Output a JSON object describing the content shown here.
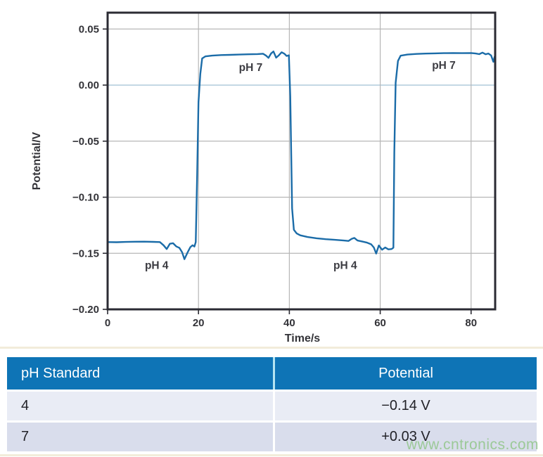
{
  "chart_data": {
    "type": "line",
    "title": "",
    "xlabel": "Time/s",
    "ylabel": "Potential/V",
    "xlim": [
      0,
      85.3
    ],
    "ylim": [
      -0.2,
      0.0646
    ],
    "grid": true,
    "legend": "none",
    "x_ticks": [
      {
        "label": "0",
        "value": 0
      },
      {
        "label": "20",
        "value": 20
      },
      {
        "label": "40",
        "value": 40
      },
      {
        "label": "60",
        "value": 60
      },
      {
        "label": "80",
        "value": 80
      }
    ],
    "y_ticks": [
      {
        "label": "0.05",
        "value": 0.05
      },
      {
        "label": "0.00",
        "value": 0.0
      },
      {
        "label": "−0.05",
        "value": -0.05
      },
      {
        "label": "−0.10",
        "value": -0.1
      },
      {
        "label": "−0.15",
        "value": -0.15
      },
      {
        "label": "−0.20",
        "value": -0.2
      }
    ],
    "colors": {
      "line": "#1B6CA8",
      "grid": "#b6b6b6",
      "zero_grid": "#a9c6d8",
      "frame": "#2b2b33"
    },
    "annotations": [
      {
        "text": "pH 7",
        "t": 31.5,
        "v": 0.0125
      },
      {
        "text": "pH 4",
        "t": 10.8,
        "v": -0.164
      },
      {
        "text": "pH 4",
        "t": 52.3,
        "v": -0.164
      },
      {
        "text": "pH 7",
        "t": 74.0,
        "v": 0.0145
      }
    ],
    "series": [
      {
        "name": "electrode potential",
        "points": [
          [
            0,
            -0.14
          ],
          [
            2,
            -0.1401
          ],
          [
            4,
            -0.1399
          ],
          [
            6,
            -0.1397
          ],
          [
            8,
            -0.1396
          ],
          [
            10,
            -0.1398
          ],
          [
            11.5,
            -0.14
          ],
          [
            12.3,
            -0.1428
          ],
          [
            13.0,
            -0.1462
          ],
          [
            13.7,
            -0.1415
          ],
          [
            14.4,
            -0.141
          ],
          [
            15.1,
            -0.1438
          ],
          [
            15.8,
            -0.1452
          ],
          [
            16.4,
            -0.149
          ],
          [
            16.9,
            -0.1552
          ],
          [
            17.6,
            -0.1492
          ],
          [
            18.2,
            -0.1445
          ],
          [
            18.7,
            -0.1428
          ],
          [
            19.1,
            -0.144
          ],
          [
            19.4,
            -0.14
          ],
          [
            19.7,
            -0.08
          ],
          [
            20.0,
            -0.015
          ],
          [
            20.4,
            0.01
          ],
          [
            20.8,
            0.0238
          ],
          [
            21.5,
            0.0256
          ],
          [
            23,
            0.0263
          ],
          [
            25,
            0.0268
          ],
          [
            27,
            0.027
          ],
          [
            29,
            0.0272
          ],
          [
            31,
            0.0275
          ],
          [
            33,
            0.0277
          ],
          [
            34.2,
            0.028
          ],
          [
            34.9,
            0.0262
          ],
          [
            35.4,
            0.0243
          ],
          [
            36.0,
            0.0283
          ],
          [
            36.5,
            0.03
          ],
          [
            37.1,
            0.0245
          ],
          [
            37.7,
            0.0266
          ],
          [
            38.3,
            0.0293
          ],
          [
            38.9,
            0.028
          ],
          [
            39.4,
            0.026
          ],
          [
            39.9,
            0.0266
          ],
          [
            40.2,
            -0.01
          ],
          [
            40.6,
            -0.11
          ],
          [
            41.0,
            -0.129
          ],
          [
            41.6,
            -0.1322
          ],
          [
            42.4,
            -0.134
          ],
          [
            44,
            -0.1355
          ],
          [
            46,
            -0.1366
          ],
          [
            48,
            -0.1374
          ],
          [
            50,
            -0.138
          ],
          [
            52,
            -0.1386
          ],
          [
            53.0,
            -0.139
          ],
          [
            53.7,
            -0.1372
          ],
          [
            54.3,
            -0.1363
          ],
          [
            55.0,
            -0.1386
          ],
          [
            56.0,
            -0.1394
          ],
          [
            57.0,
            -0.1404
          ],
          [
            58.0,
            -0.142
          ],
          [
            58.6,
            -0.1448
          ],
          [
            59.1,
            -0.1502
          ],
          [
            59.7,
            -0.143
          ],
          [
            60.4,
            -0.1468
          ],
          [
            61.1,
            -0.1448
          ],
          [
            61.8,
            -0.1465
          ],
          [
            62.5,
            -0.1462
          ],
          [
            62.9,
            -0.145
          ],
          [
            63.1,
            -0.06
          ],
          [
            63.4,
            0.002
          ],
          [
            63.9,
            0.0215
          ],
          [
            64.5,
            0.0262
          ],
          [
            66,
            0.0272
          ],
          [
            68,
            0.0278
          ],
          [
            70,
            0.0281
          ],
          [
            72,
            0.0283
          ],
          [
            74,
            0.0285
          ],
          [
            76,
            0.0286
          ],
          [
            78,
            0.0285
          ],
          [
            80,
            0.0286
          ],
          [
            81,
            0.0282
          ],
          [
            81.8,
            0.0276
          ],
          [
            82.5,
            0.029
          ],
          [
            83.2,
            0.0275
          ],
          [
            83.8,
            0.0282
          ],
          [
            84.4,
            0.0265
          ],
          [
            84.9,
            0.0208
          ],
          [
            85.2,
            0.0256
          ],
          [
            85.3,
            0.0242
          ]
        ]
      }
    ]
  },
  "table": {
    "header": {
      "ph": "pH Standard",
      "potential": "Potential"
    },
    "rows": [
      {
        "ph": "4",
        "potential": "−0.14 V"
      },
      {
        "ph": "7",
        "potential": "+0.03 V"
      }
    ],
    "colors": {
      "header_bg": "#0E74B6",
      "row_a": "#e9ecf5",
      "row_b": "#d9ddec"
    }
  },
  "watermark": {
    "text": "www.cntronics.com"
  }
}
